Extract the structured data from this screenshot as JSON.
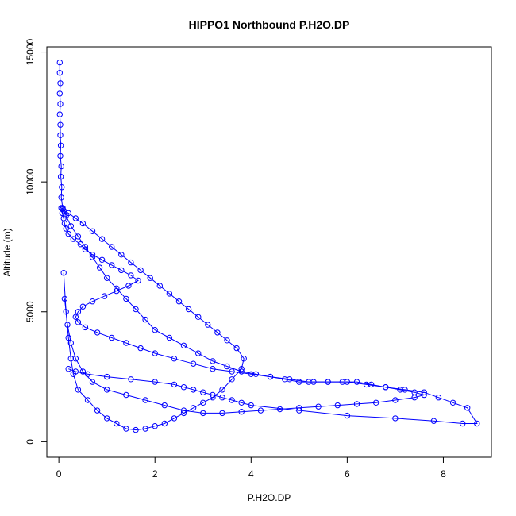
{
  "chart_data": {
    "type": "scatter",
    "title": "HIPPO1 Northbound P.H2O.DP",
    "xlabel": "P.H2O.DP",
    "ylabel": "Altitude (m)",
    "xlim": [
      -0.25,
      9.0
    ],
    "ylim": [
      -600,
      15200
    ],
    "xticks": [
      0,
      2,
      4,
      6,
      8
    ],
    "yticks": [
      0,
      5000,
      10000,
      15000
    ],
    "point_color": "#0000ff",
    "marker": "open-circle",
    "lines_connecting_points": true,
    "grid": false,
    "legend": "none",
    "series": [
      {
        "x": [
          0.02,
          0.02,
          0.03,
          0.02,
          0.03,
          0.02,
          0.03,
          0.03,
          0.04,
          0.03,
          0.05,
          0.04,
          0.06,
          0.05,
          0.08,
          0.07,
          0.1,
          0.12,
          0.15,
          0.2,
          0.3,
          0.45,
          0.55,
          0.7,
          0.9,
          1.1,
          1.3,
          1.5,
          1.65,
          1.45,
          1.2,
          0.95,
          0.7,
          0.5,
          0.4,
          0.35,
          0.4,
          0.55,
          0.8,
          1.1,
          1.4,
          1.7,
          2.0,
          2.4,
          2.8,
          3.2,
          3.6,
          4.0,
          4.4,
          4.8,
          5.2,
          5.6,
          6.0,
          6.4,
          6.8,
          7.2,
          7.6,
          7.9,
          8.2,
          8.5,
          8.7,
          8.4,
          7.8,
          7.0,
          6.0,
          5.0,
          4.0,
          3.8,
          3.6,
          3.4,
          3.2,
          3.0,
          2.8,
          2.6,
          2.4,
          2.0,
          1.5,
          1.0,
          0.6,
          0.35,
          0.2
        ],
        "y": [
          14600,
          14200,
          13800,
          13400,
          13000,
          12600,
          12200,
          11800,
          11400,
          11000,
          10600,
          10200,
          9800,
          9400,
          9000,
          8800,
          8600,
          8400,
          8200,
          8000,
          7800,
          7600,
          7400,
          7200,
          7000,
          6800,
          6600,
          6400,
          6200,
          6000,
          5800,
          5600,
          5400,
          5200,
          5000,
          4800,
          4600,
          4400,
          4200,
          4000,
          3800,
          3600,
          3400,
          3200,
          3000,
          2800,
          2700,
          2600,
          2500,
          2400,
          2300,
          2300,
          2300,
          2200,
          2100,
          2000,
          1900,
          1700,
          1500,
          1300,
          700,
          700,
          800,
          900,
          1000,
          1200,
          1400,
          1500,
          1600,
          1700,
          1800,
          1900,
          2000,
          2100,
          2200,
          2300,
          2400,
          2500,
          2600,
          2700,
          2800
        ]
      },
      {
        "x": [
          0.05,
          0.1,
          0.2,
          0.35,
          0.5,
          0.7,
          0.9,
          1.1,
          1.3,
          1.5,
          1.7,
          1.9,
          2.1,
          2.3,
          2.5,
          2.7,
          2.9,
          3.1,
          3.3,
          3.5,
          3.7,
          3.85,
          3.8,
          3.6,
          3.4,
          3.2,
          3.0,
          2.8,
          2.6,
          2.4,
          2.2,
          2.0,
          1.8,
          1.6,
          1.4,
          1.2,
          1.0,
          0.8,
          0.6,
          0.4,
          0.3,
          0.25,
          0.2,
          0.15,
          0.1
        ],
        "y": [
          9000,
          8900,
          8800,
          8600,
          8400,
          8100,
          7800,
          7500,
          7200,
          6900,
          6600,
          6300,
          6000,
          5700,
          5400,
          5100,
          4800,
          4500,
          4200,
          3900,
          3600,
          3200,
          2800,
          2400,
          2000,
          1700,
          1500,
          1300,
          1100,
          900,
          700,
          600,
          500,
          450,
          500,
          700,
          900,
          1200,
          1600,
          2000,
          2600,
          3200,
          4000,
          5000,
          6500
        ]
      },
      {
        "x": [
          0.08,
          0.15,
          0.25,
          0.4,
          0.55,
          0.7,
          0.85,
          1.0,
          1.2,
          1.4,
          1.6,
          1.8,
          2.0,
          2.3,
          2.6,
          2.9,
          3.2,
          3.5,
          3.8,
          4.1,
          4.4,
          4.7,
          5.0,
          5.3,
          5.6,
          5.9,
          6.2,
          6.5,
          6.8,
          7.1,
          7.4,
          7.6,
          7.4,
          7.0,
          6.6,
          6.2,
          5.8,
          5.4,
          5.0,
          4.6,
          4.2,
          3.8,
          3.4,
          3.0,
          2.6,
          2.2,
          1.8,
          1.4,
          1.0,
          0.7,
          0.5,
          0.35,
          0.25,
          0.18,
          0.12
        ],
        "y": [
          8950,
          8700,
          8300,
          7900,
          7500,
          7100,
          6700,
          6300,
          5900,
          5500,
          5100,
          4700,
          4300,
          4000,
          3700,
          3400,
          3100,
          2900,
          2700,
          2600,
          2500,
          2400,
          2300,
          2300,
          2300,
          2300,
          2300,
          2200,
          2100,
          2000,
          1900,
          1800,
          1700,
          1600,
          1500,
          1450,
          1400,
          1350,
          1300,
          1250,
          1200,
          1150,
          1100,
          1100,
          1200,
          1400,
          1600,
          1800,
          2000,
          2300,
          2700,
          3200,
          3800,
          4500,
          5500
        ]
      }
    ]
  }
}
